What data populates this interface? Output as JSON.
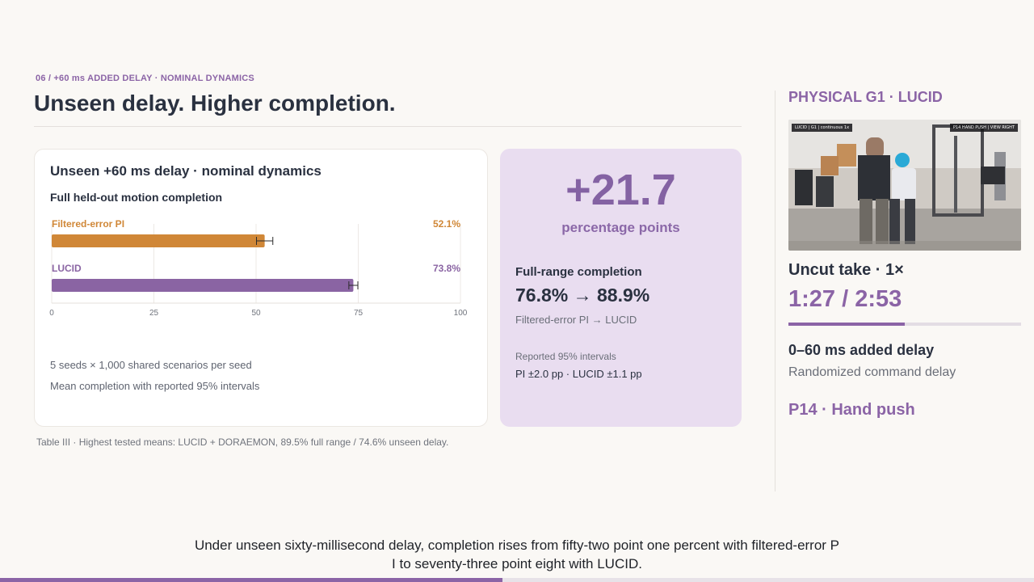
{
  "header": {
    "eyebrow": "06 / +60 ms ADDED DELAY · NOMINAL DYNAMICS",
    "title": "Unseen delay. Higher completion."
  },
  "card": {
    "title": "Unseen +60 ms delay · nominal dynamics",
    "subtitle": "Full held-out motion completion",
    "note1": "5 seeds × 1,000 shared scenarios per seed",
    "note2": "Mean completion with reported 95% intervals"
  },
  "chart_data": {
    "type": "bar",
    "orientation": "horizontal",
    "title": "Full held-out motion completion",
    "categories": [
      "Filtered-error PI",
      "LUCID"
    ],
    "values": [
      52.1,
      73.8
    ],
    "value_labels": [
      "52.1%",
      "73.8%"
    ],
    "ci_halfwidth": [
      2.0,
      1.1
    ],
    "xlim": [
      0,
      100
    ],
    "xticks": [
      0,
      25,
      50,
      75,
      100
    ],
    "grid": true,
    "colors": [
      "#d08737",
      "#8a64a3"
    ]
  },
  "caption": "Table III · Highest tested means: LUCID + DORAEMON, 89.5% full range / 74.6% unseen delay.",
  "stat": {
    "big": "+21.7",
    "unit": "percentage points",
    "range_heading": "Full-range completion",
    "range_value": "76.8% → 88.9%",
    "range_sub": "Filtered-error PI → LUCID",
    "interval_heading": "Reported 95% intervals",
    "interval_value": "PI ±2.0 pp · LUCID ±1.1 pp"
  },
  "side": {
    "title": "PHYSICAL G1 · LUCID",
    "video_tag_left": "LUCID | G1 | continuous 1x",
    "video_tag_right": "P14 HAND PUSH | VIEW RIGHT",
    "uncut": "Uncut take · 1×",
    "time": "1:27 / 2:53",
    "progress_fraction": 0.5,
    "delay_heading": "0–60 ms added delay",
    "delay_sub": "Randomized command delay",
    "perturbation": "P14 · Hand push"
  },
  "subtitle_line1": "Under unseen sixty-millisecond delay, completion rises from fifty-two point one percent with filtered-error P",
  "subtitle_line2": "I to seventy-three point eight with LUCID.",
  "deck_progress_fraction": 0.486
}
